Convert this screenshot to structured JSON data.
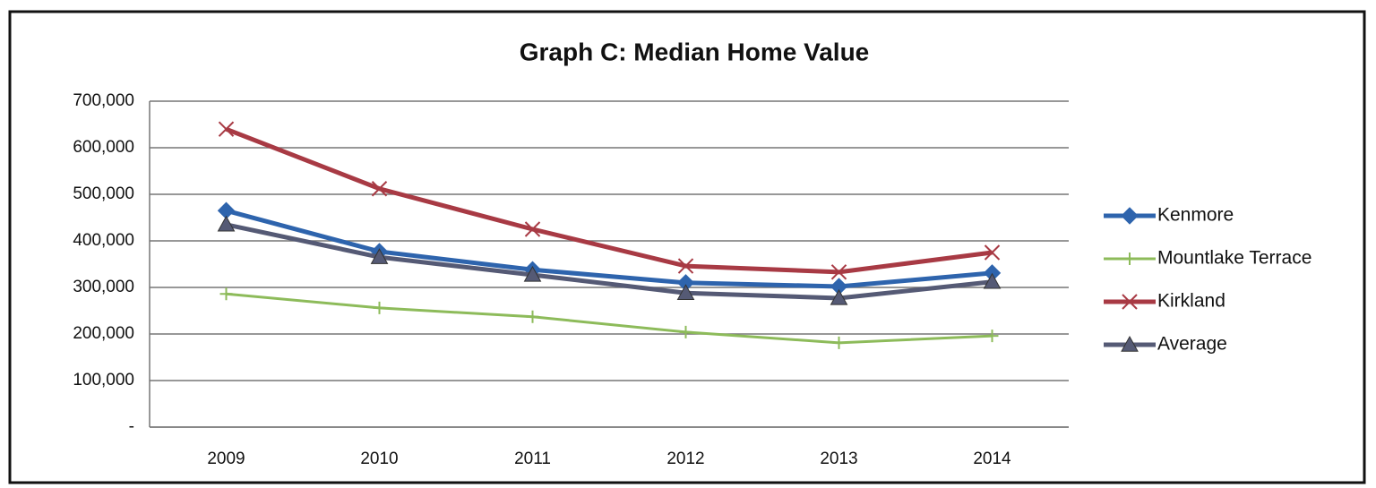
{
  "chart_data": {
    "type": "line",
    "title": "Graph C: Median Home Value",
    "categories": [
      "2009",
      "2010",
      "2011",
      "2012",
      "2013",
      "2014"
    ],
    "series": [
      {
        "name": "Kenmore",
        "color": "#2e64ad",
        "marker": "diamond",
        "values": [
          465000,
          377000,
          338000,
          310000,
          302000,
          331000
        ]
      },
      {
        "name": "Mountlake Terrace",
        "color": "#8dbb5a",
        "marker": "plus",
        "values": [
          286000,
          256000,
          237000,
          204000,
          181000,
          196000
        ]
      },
      {
        "name": "Kirkland",
        "color": "#a83a44",
        "marker": "x",
        "values": [
          640000,
          512000,
          425000,
          346000,
          333000,
          375000
        ]
      },
      {
        "name": "Average",
        "color": "#555a75",
        "marker": "triangle",
        "values": [
          435000,
          365000,
          327000,
          288000,
          277000,
          312000
        ]
      }
    ],
    "ylim": [
      0,
      700000
    ],
    "yticks": [
      {
        "value": 0,
        "label": "-"
      },
      {
        "value": 100000,
        "label": "100,000"
      },
      {
        "value": 200000,
        "label": "200,000"
      },
      {
        "value": 300000,
        "label": "300,000"
      },
      {
        "value": 400000,
        "label": "400,000"
      },
      {
        "value": 500000,
        "label": "500,000"
      },
      {
        "value": 600000,
        "label": "600,000"
      },
      {
        "value": 700000,
        "label": "700,000"
      }
    ],
    "grid": true,
    "legend": "right"
  }
}
